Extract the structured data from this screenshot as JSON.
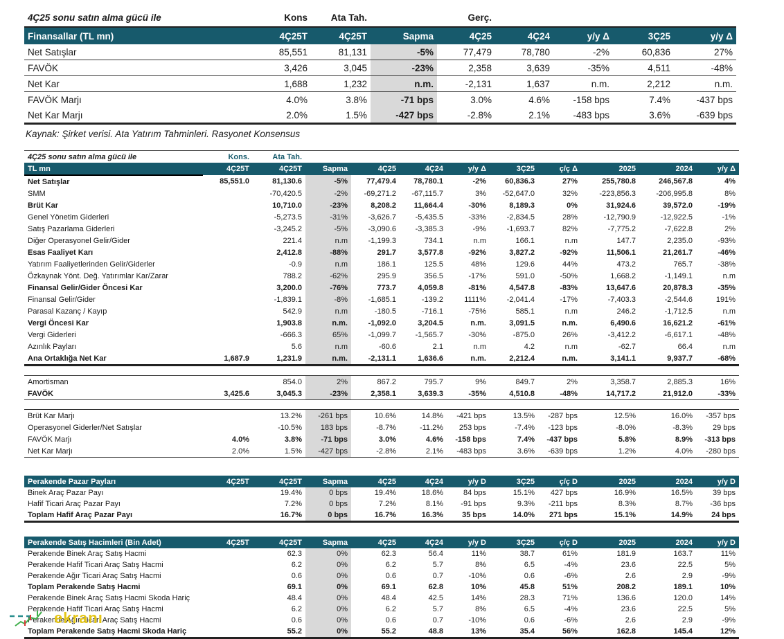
{
  "colors": {
    "teal": "#175A6C",
    "sapma_gray": "#D9D9D9",
    "watermark_yellow": "#E4C517"
  },
  "watermark": {
    "text": "ekranı"
  },
  "table1": {
    "title": "4Ç25 sonu satın alma gücü ile",
    "group_labels": {
      "kons": "Kons",
      "ata": "Ata Tah.",
      "gerc": "Gerç."
    },
    "header": [
      "Finansallar  (TL mn)",
      "4Ç25T",
      "4Ç25T",
      "Sapma",
      "4Ç25",
      "4Ç24",
      "y/y Δ",
      "3Ç25",
      "y/y Δ"
    ],
    "gray_col": 2,
    "bold_cols": [
      2
    ],
    "rows": [
      {
        "label": "Net Satışlar",
        "cls": "sep",
        "cells": [
          "85,551",
          "81,131",
          "-5%",
          "77,479",
          "78,780",
          "-2%",
          "60,836",
          "27%"
        ]
      },
      {
        "label": "FAVÖK",
        "cls": "sep",
        "cells": [
          "3,426",
          "3,045",
          "-23%",
          "2,358",
          "3,639",
          "-35%",
          "4,511",
          "-48%"
        ]
      },
      {
        "label": "Net Kar",
        "cls": "sep",
        "cells": [
          "1,688",
          "1,232",
          "n.m.",
          "-2,131",
          "1,637",
          "n.m.",
          "2,212",
          "n.m."
        ]
      },
      {
        "label": "FAVÖK Marjı",
        "cls": "",
        "cells": [
          "4.0%",
          "3.8%",
          "-71 bps",
          "3.0%",
          "4.6%",
          "-158 bps",
          "7.4%",
          "-437 bps"
        ]
      },
      {
        "label": "Net Kar Marjı",
        "cls": "thick",
        "cells": [
          "2.0%",
          "1.5%",
          "-427 bps",
          "-2.8%",
          "2.1%",
          "-483 bps",
          "3.6%",
          "-639 bps"
        ]
      }
    ],
    "source_note": "Kaynak: Şirket verisi. Ata Yatırım Tahminleri. Rasyonet Konsensus"
  },
  "table2": {
    "title": "4Ç25 sonu satın alma gücü ile",
    "group_labels": {
      "kons": "Kons.",
      "ata": "Ata Tah."
    },
    "header": [
      "TL mn",
      "4Ç25T",
      "4Ç25T",
      "Sapma",
      "4Ç25",
      "4Ç24",
      "y/y Δ",
      "3Ç25",
      "ç/ç Δ",
      "2025",
      "2024",
      "y/y Δ"
    ],
    "gray_col": 2,
    "rows": [
      {
        "label": "Net Satışlar",
        "bold": true,
        "cells": [
          "85,551.0",
          "81,130.6",
          "-5%",
          "77,479.4",
          "78,780.1",
          "-2%",
          "60,836.3",
          "27%",
          "255,780.8",
          "246,567.8",
          "4%"
        ]
      },
      {
        "label": "SMM",
        "cells": [
          "",
          "-70,420.5",
          "-2%",
          "-69,271.2",
          "-67,115.7",
          "3%",
          "-52,647.0",
          "32%",
          "-223,856.3",
          "-206,995.8",
          "8%"
        ]
      },
      {
        "label": "Brüt Kar",
        "bold": true,
        "cells": [
          "",
          "10,710.0",
          "-23%",
          "8,208.2",
          "11,664.4",
          "-30%",
          "8,189.3",
          "0%",
          "31,924.6",
          "39,572.0",
          "-19%"
        ]
      },
      {
        "label": "Genel Yönetim Giderleri",
        "cells": [
          "",
          "-5,273.5",
          "-31%",
          "-3,626.7",
          "-5,435.5",
          "-33%",
          "-2,834.5",
          "28%",
          "-12,790.9",
          "-12,922.5",
          "-1%"
        ]
      },
      {
        "label": "Satış Pazarlama Giderleri",
        "cells": [
          "",
          "-3,245.2",
          "-5%",
          "-3,090.6",
          "-3,385.3",
          "-9%",
          "-1,693.7",
          "82%",
          "-7,775.2",
          "-7,622.8",
          "2%"
        ]
      },
      {
        "label": "Diğer Operasyonel Gelir/Gider",
        "cells": [
          "",
          "221.4",
          "n.m",
          "-1,199.3",
          "734.1",
          "n.m",
          "166.1",
          "n.m",
          "147.7",
          "2,235.0",
          "-93%"
        ]
      },
      {
        "label": "Esas Faaliyet Karı",
        "bold": true,
        "cells": [
          "",
          "2,412.8",
          "-88%",
          "291.7",
          "3,577.8",
          "-92%",
          "3,827.2",
          "-92%",
          "11,506.1",
          "21,261.7",
          "-46%"
        ]
      },
      {
        "label": "Yatırım Faaliyetlerinden Gelir/Giderler",
        "cells": [
          "",
          "-0.9",
          "n.m",
          "186.1",
          "125.5",
          "48%",
          "129.6",
          "44%",
          "473.2",
          "765.7",
          "-38%"
        ]
      },
      {
        "label": "Özkaynak Yönt. Değ. Yatırımlar Kar/Zarar",
        "cells": [
          "",
          "788.2",
          "-62%",
          "295.9",
          "356.5",
          "-17%",
          "591.0",
          "-50%",
          "1,668.2",
          "-1,149.1",
          "n.m"
        ]
      },
      {
        "label": "Finansal Gelir/Gider Öncesi Kar",
        "bold": true,
        "cells": [
          "",
          "3,200.0",
          "-76%",
          "773.7",
          "4,059.8",
          "-81%",
          "4,547.8",
          "-83%",
          "13,647.6",
          "20,878.3",
          "-35%"
        ]
      },
      {
        "label": "Finansal Gelir/Gider",
        "cells": [
          "",
          "-1,839.1",
          "-8%",
          "-1,685.1",
          "-139.2",
          "1111%",
          "-2,041.4",
          "-17%",
          "-7,403.3",
          "-2,544.6",
          "191%"
        ]
      },
      {
        "label": "Parasal Kazanç / Kayıp",
        "cells": [
          "",
          "542.9",
          "n.m",
          "-180.5",
          "-716.1",
          "-75%",
          "585.1",
          "n.m",
          "246.2",
          "-1,712.5",
          "n.m"
        ]
      },
      {
        "label": "Vergi Öncesi Kar",
        "bold": true,
        "cells": [
          "",
          "1,903.8",
          "n.m.",
          "-1,092.0",
          "3,204.5",
          "n.m.",
          "3,091.5",
          "n.m.",
          "6,490.6",
          "16,621.2",
          "-61%"
        ]
      },
      {
        "label": "Vergi Giderleri",
        "cells": [
          "",
          "-666.3",
          "65%",
          "-1,099.7",
          "-1,565.7",
          "-30%",
          "-875.0",
          "26%",
          "-3,412.2",
          "-6,617.1",
          "-48%"
        ]
      },
      {
        "label": "Azınlık Payları",
        "cells": [
          "",
          "5.6",
          "n.m",
          "-60.6",
          "2.1",
          "n.m",
          "4.2",
          "n.m",
          "-62.7",
          "66.4",
          "n.m"
        ]
      },
      {
        "label": "Ana Ortaklığa Net Kar",
        "bold": true,
        "cls": "thick",
        "cells": [
          "1,687.9",
          "1,231.9",
          "n.m.",
          "-2,131.1",
          "1,636.6",
          "n.m.",
          "2,212.4",
          "n.m.",
          "3,141.1",
          "9,937.7",
          "-68%"
        ]
      },
      {
        "gap": true
      },
      {
        "label": "Amortisman",
        "cls": "topline",
        "cells": [
          "",
          "854.0",
          "2%",
          "867.2",
          "795.7",
          "9%",
          "849.7",
          "2%",
          "3,358.7",
          "2,885.3",
          "16%"
        ]
      },
      {
        "label": "FAVÖK",
        "bold": true,
        "cls": "botline",
        "cells": [
          "3,425.6",
          "3,045.3",
          "-23%",
          "2,358.1",
          "3,639.3",
          "-35%",
          "4,510.8",
          "-48%",
          "14,717.2",
          "21,912.0",
          "-33%"
        ]
      },
      {
        "gap": true
      },
      {
        "label": "Brüt Kar Marjı",
        "cls": "topline",
        "cells": [
          "",
          "13.2%",
          "-261 bps",
          "10.6%",
          "14.8%",
          "-421 bps",
          "13.5%",
          "-287 bps",
          "12.5%",
          "16.0%",
          "-357 bps"
        ]
      },
      {
        "label": "Operasyonel Giderler/Net Satışlar",
        "cells": [
          "",
          "-10.5%",
          "183 bps",
          "-8.7%",
          "-11.2%",
          "253 bps",
          "-7.4%",
          "-123 bps",
          "-8.0%",
          "-8.3%",
          "29 bps"
        ]
      },
      {
        "label": "FAVÖK Marjı",
        "boldVals": true,
        "cells": [
          "4.0%",
          "3.8%",
          "-71 bps",
          "3.0%",
          "4.6%",
          "-158 bps",
          "7.4%",
          "-437 bps",
          "5.8%",
          "8.9%",
          "-313 bps"
        ]
      },
      {
        "label": "Net Kar Marjı",
        "cls": "botline",
        "cells": [
          "2.0%",
          "1.5%",
          "-427 bps",
          "-2.8%",
          "2.1%",
          "-483 bps",
          "3.6%",
          "-639 bps",
          "1.2%",
          "4.0%",
          "-280 bps"
        ]
      }
    ]
  },
  "table3": {
    "header": [
      "Perakende Pazar Payları",
      "4Ç25T",
      "4Ç25T",
      "Sapma",
      "4Ç25",
      "4Ç24",
      "y/y D",
      "3Ç25",
      "ç/ç D",
      "2025",
      "2024",
      "y/y D"
    ],
    "gray_col": 2,
    "rows": [
      {
        "label": "Binek Araç Pazar Payı",
        "cells": [
          "",
          "19.4%",
          "0 bps",
          "19.4%",
          "18.6%",
          "84 bps",
          "15.1%",
          "427 bps",
          "16.9%",
          "16.5%",
          "39 bps"
        ]
      },
      {
        "label": "Hafif Ticari Araç Pazar Payı",
        "cells": [
          "",
          "7.2%",
          "0 bps",
          "7.2%",
          "8.1%",
          "-91 bps",
          "9.3%",
          "-211 bps",
          "8.3%",
          "8.7%",
          "-36 bps"
        ]
      },
      {
        "label": "Toplam Hafif Araç Pazar Payı",
        "bold": true,
        "cls": "thick",
        "cells": [
          "",
          "16.7%",
          "0 bps",
          "16.7%",
          "16.3%",
          "35 bps",
          "14.0%",
          "271 bps",
          "15.1%",
          "14.9%",
          "24 bps"
        ]
      }
    ]
  },
  "table4": {
    "header": [
      "Perakende Satış Hacimleri (Bin Adet)",
      "4Ç25T",
      "4Ç25T",
      "Sapma",
      "4Ç25",
      "4Ç24",
      "y/y D",
      "3Ç25",
      "ç/ç D",
      "2025",
      "2024",
      "y/y D"
    ],
    "gray_col": 2,
    "rows": [
      {
        "label": "Perakende Binek Araç Satış Hacmi",
        "cells": [
          "",
          "62.3",
          "0%",
          "62.3",
          "56.4",
          "11%",
          "38.7",
          "61%",
          "181.9",
          "163.7",
          "11%"
        ]
      },
      {
        "label": "Perakende Hafif Ticari Araç Satış Hacmi",
        "cells": [
          "",
          "6.2",
          "0%",
          "6.2",
          "5.7",
          "8%",
          "6.5",
          "-4%",
          "23.6",
          "22.5",
          "5%"
        ]
      },
      {
        "label": "Perakende Ağır Ticari Araç Satış Hacmi",
        "cells": [
          "",
          "0.6",
          "0%",
          "0.6",
          "0.7",
          "-10%",
          "0.6",
          "-6%",
          "2.6",
          "2.9",
          "-9%"
        ]
      },
      {
        "label": "Toplam Perakende Satış Hacmi",
        "bold": true,
        "cells": [
          "",
          "69.1",
          "0%",
          "69.1",
          "62.8",
          "10%",
          "45.8",
          "51%",
          "208.2",
          "189.1",
          "10%"
        ]
      },
      {
        "label": "Perakende Binek Araç Satış Hacmi Skoda Hariç",
        "cells": [
          "",
          "48.4",
          "0%",
          "48.4",
          "42.5",
          "14%",
          "28.3",
          "71%",
          "136.6",
          "120.0",
          "14%"
        ]
      },
      {
        "label": "Perakende Hafif Ticari Araç Satış Hacmi",
        "cells": [
          "",
          "6.2",
          "0%",
          "6.2",
          "5.7",
          "8%",
          "6.5",
          "-4%",
          "23.6",
          "22.5",
          "5%"
        ]
      },
      {
        "label": "Perakende Ağır Ticari Araç Satış Hacmi",
        "cells": [
          "",
          "0.6",
          "0%",
          "0.6",
          "0.7",
          "-10%",
          "0.6",
          "-6%",
          "2.6",
          "2.9",
          "-9%"
        ]
      },
      {
        "label": "Toplam Perakende Satış Hacmi Skoda Hariç",
        "bold": true,
        "cls": "thick",
        "cells": [
          "",
          "55.2",
          "0%",
          "55.2",
          "48.8",
          "13%",
          "35.4",
          "56%",
          "162.8",
          "145.4",
          "12%"
        ]
      }
    ]
  }
}
